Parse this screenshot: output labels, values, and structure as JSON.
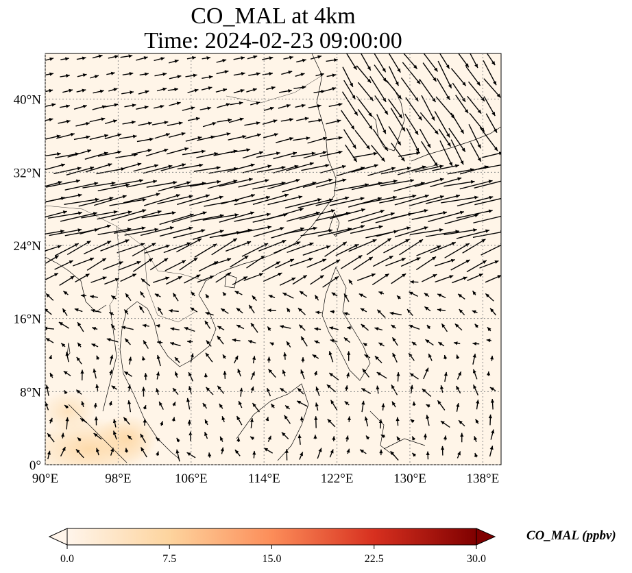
{
  "title": {
    "line1": "CO_MAL at 4km",
    "line2": "Time: 2024-02-23 09:00:00"
  },
  "map": {
    "lon_range": [
      90,
      140
    ],
    "lat_range": [
      0,
      45
    ],
    "lon_ticks": [
      {
        "value": 90,
        "label": "90°E"
      },
      {
        "value": 98,
        "label": "98°E"
      },
      {
        "value": 106,
        "label": "106°E"
      },
      {
        "value": 114,
        "label": "114°E"
      },
      {
        "value": 122,
        "label": "122°E"
      },
      {
        "value": 130,
        "label": "130°E"
      },
      {
        "value": 138,
        "label": "138°E"
      }
    ],
    "lat_ticks": [
      {
        "value": 0,
        "label": "0°"
      },
      {
        "value": 8,
        "label": "8°N"
      },
      {
        "value": 16,
        "label": "16°N"
      },
      {
        "value": 24,
        "label": "24°N"
      },
      {
        "value": 32,
        "label": "32°N"
      },
      {
        "value": 40,
        "label": "40°N"
      }
    ],
    "gridlines": true,
    "background_color": "#fff5e8",
    "arrow_color": "#000000",
    "coastline_color": "#000000"
  },
  "colorbar": {
    "label": "CO_MAL (ppbv)",
    "min": 0.0,
    "max": 30.0,
    "ticks": [
      {
        "value": 0.0,
        "label": "0.0"
      },
      {
        "value": 7.5,
        "label": "7.5"
      },
      {
        "value": 15.0,
        "label": "15.0"
      },
      {
        "value": 22.5,
        "label": "22.5"
      },
      {
        "value": 30.0,
        "label": "30.0"
      }
    ],
    "colors": [
      "#fff5eb",
      "#fdd49e",
      "#fc8d59",
      "#d7301f",
      "#7f0000"
    ],
    "extend": "both"
  }
}
